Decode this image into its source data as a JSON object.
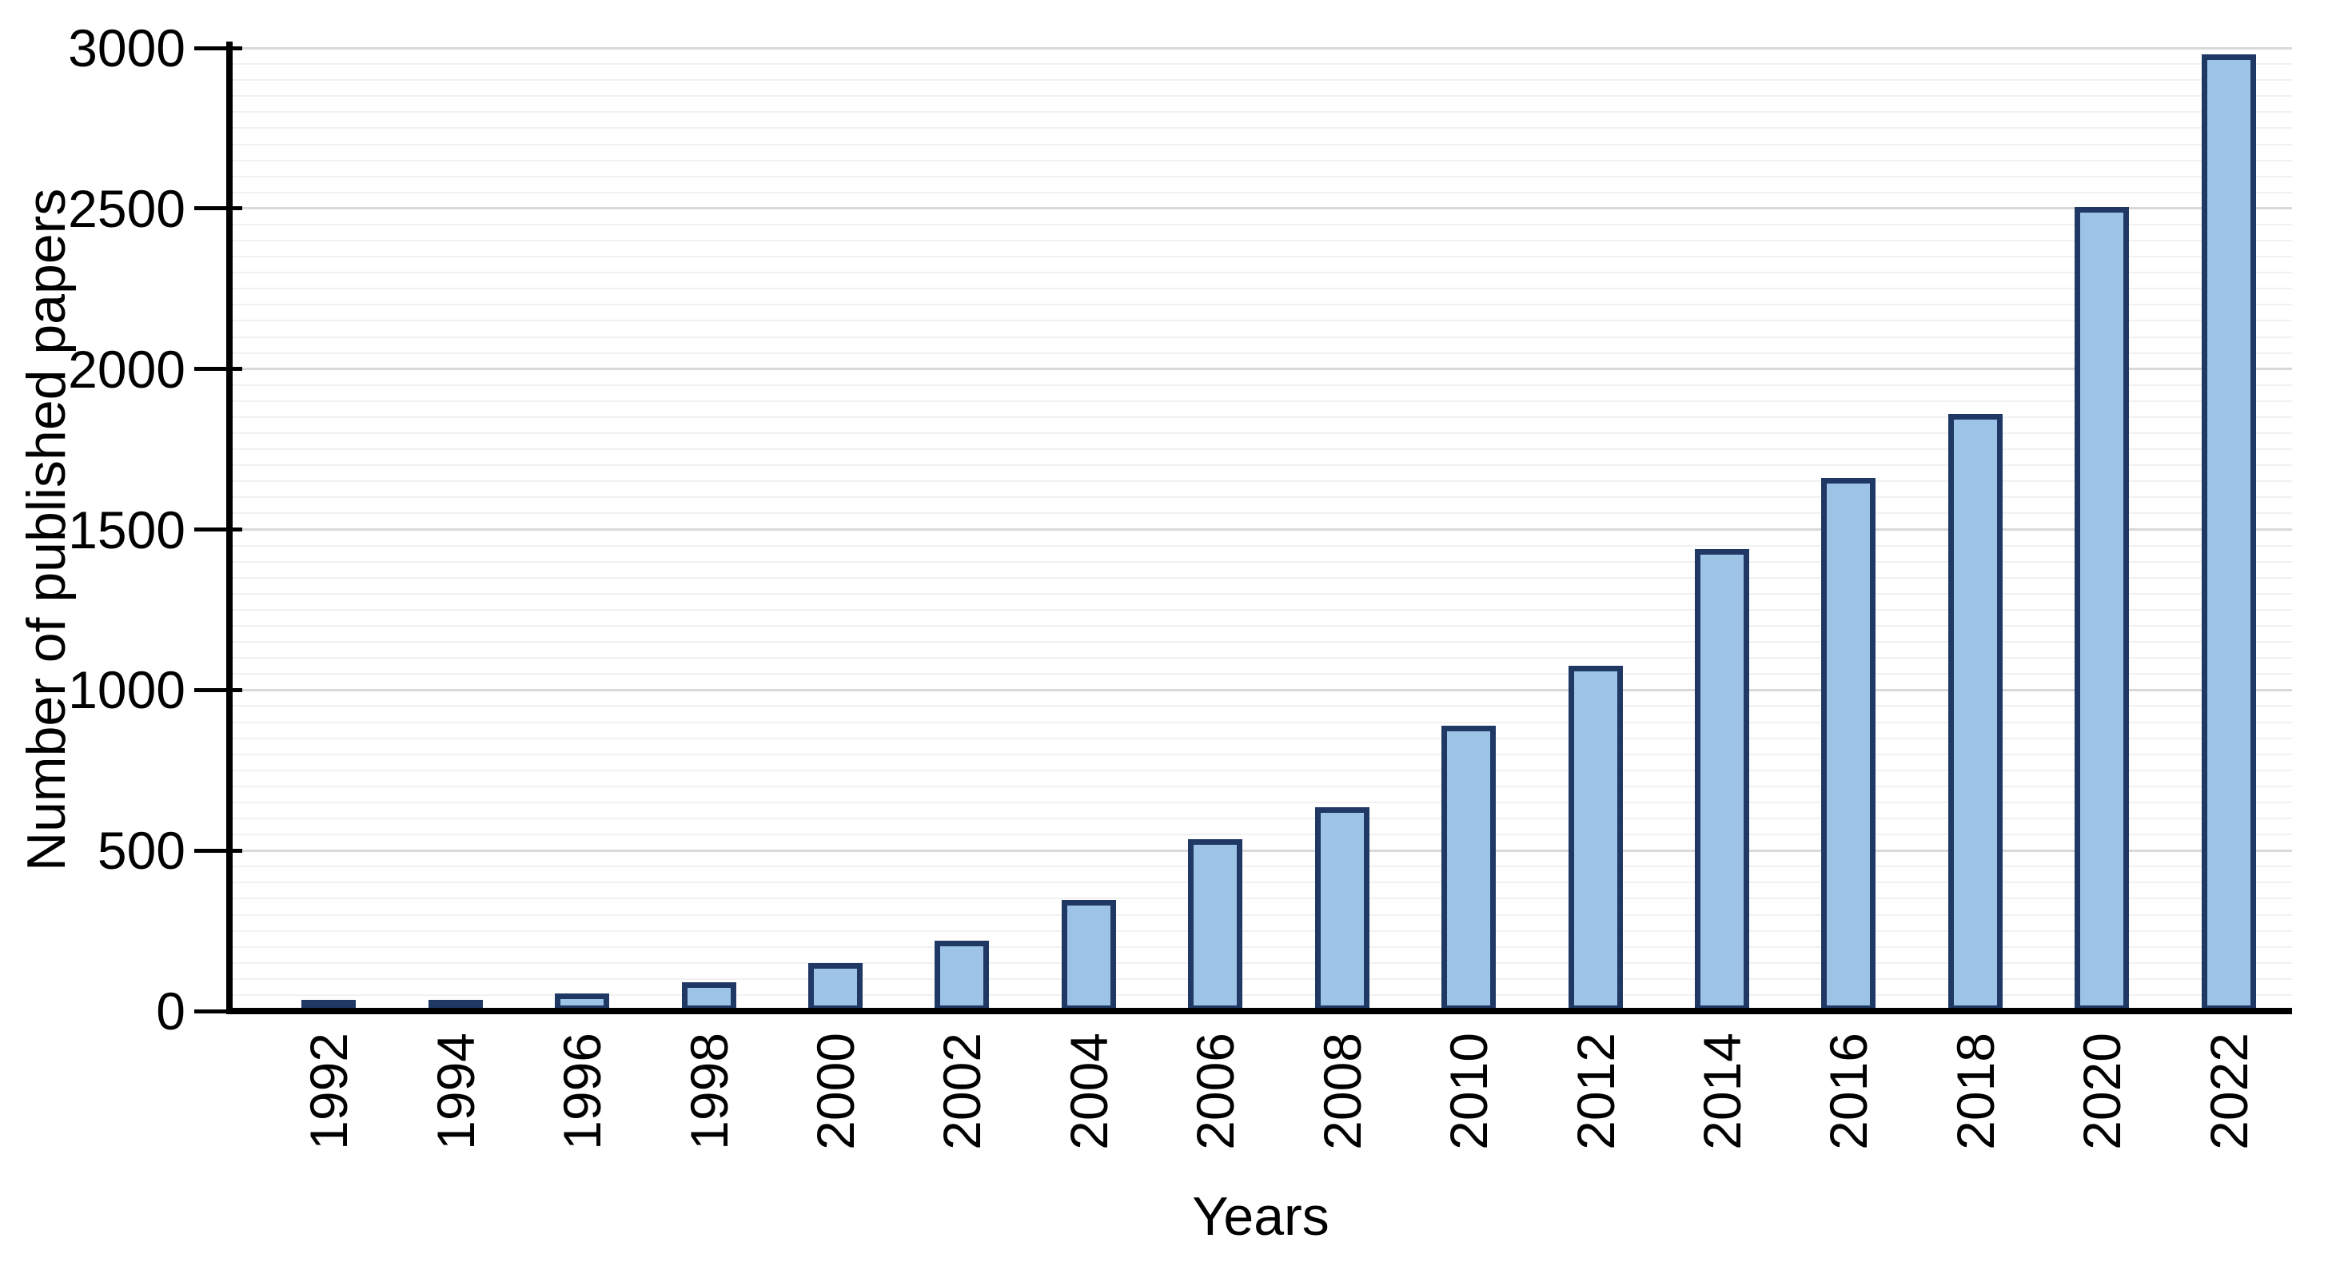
{
  "chart_data": {
    "type": "bar",
    "title": "",
    "xlabel": "Years",
    "ylabel": "Number of published papers",
    "categories": [
      "1992",
      "1994",
      "1996",
      "1998",
      "2000",
      "2002",
      "2004",
      "2006",
      "2008",
      "2010",
      "2012",
      "2014",
      "2016",
      "2018",
      "2020",
      "2022"
    ],
    "values": [
      10,
      10,
      55,
      90,
      150,
      220,
      345,
      535,
      635,
      890,
      1075,
      1440,
      1660,
      1860,
      2505,
      2980
    ],
    "ylim": [
      0,
      3000
    ],
    "ytick_interval": 500,
    "ytick_labels": [
      "0",
      "500",
      "1000",
      "1500",
      "2000",
      "2500",
      "3000"
    ],
    "minor_grid_interval": 50,
    "grid": "horizontal",
    "legend": "none",
    "colors": {
      "bar_fill": "#9DC3E6",
      "bar_border": "#1F3864",
      "axis": "#000000",
      "major_grid": "#D9D9D9",
      "minor_grid": "#F1F1F1",
      "text": "#000000",
      "background": "#FFFFFF"
    }
  }
}
